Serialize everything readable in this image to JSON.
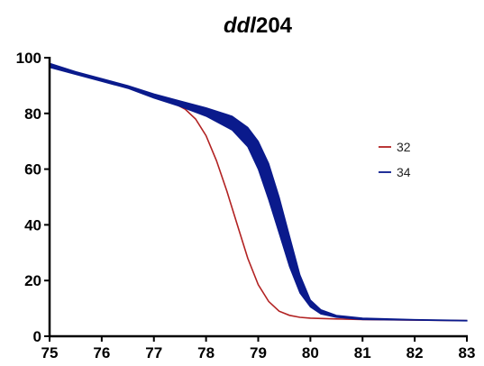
{
  "chart_data": {
    "type": "line",
    "title": {
      "italic": "ddl",
      "rest": "204"
    },
    "xlabel": "",
    "ylabel": "",
    "xlim": [
      75,
      83
    ],
    "ylim": [
      0,
      100
    ],
    "x_ticks": [
      "75",
      "76",
      "77",
      "78",
      "79",
      "80",
      "81",
      "82",
      "83"
    ],
    "y_ticks": [
      "0",
      "20",
      "40",
      "60",
      "80",
      "100"
    ],
    "grid": false,
    "legend_position": "right",
    "series": [
      {
        "name": "32",
        "color": "#b22222",
        "points": [
          [
            75,
            97.5
          ],
          [
            75.5,
            94.5
          ],
          [
            76,
            92.0
          ],
          [
            76.5,
            89.5
          ],
          [
            77,
            86.5
          ],
          [
            77.3,
            84.5
          ],
          [
            77.6,
            81.5
          ],
          [
            77.8,
            78.0
          ],
          [
            78.0,
            72.0
          ],
          [
            78.2,
            63.0
          ],
          [
            78.4,
            52.0
          ],
          [
            78.6,
            40.0
          ],
          [
            78.8,
            28.0
          ],
          [
            79.0,
            18.5
          ],
          [
            79.2,
            12.5
          ],
          [
            79.4,
            9.0
          ],
          [
            79.6,
            7.5
          ],
          [
            79.8,
            6.8
          ],
          [
            80.0,
            6.5
          ],
          [
            80.5,
            6.2
          ],
          [
            81.0,
            6.0
          ],
          [
            82.0,
            5.8
          ],
          [
            83.0,
            5.6
          ]
        ]
      },
      {
        "name": "34",
        "color": "#0a1a8c",
        "upper": [
          [
            75,
            98.0
          ],
          [
            75.5,
            95.0
          ],
          [
            76,
            92.5
          ],
          [
            76.5,
            90.0
          ],
          [
            77,
            87.0
          ],
          [
            77.5,
            84.5
          ],
          [
            78.0,
            82.0
          ],
          [
            78.5,
            79.0
          ],
          [
            78.8,
            75.0
          ],
          [
            79.0,
            70.0
          ],
          [
            79.2,
            62.0
          ],
          [
            79.4,
            50.0
          ],
          [
            79.6,
            36.0
          ],
          [
            79.8,
            22.0
          ],
          [
            80.0,
            13.0
          ],
          [
            80.2,
            9.5
          ],
          [
            80.5,
            7.5
          ],
          [
            81.0,
            6.5
          ],
          [
            82.0,
            6.0
          ],
          [
            83.0,
            5.7
          ]
        ],
        "lower": [
          [
            75,
            96.5
          ],
          [
            75.5,
            94.0
          ],
          [
            76,
            91.5
          ],
          [
            76.5,
            89.0
          ],
          [
            77,
            85.5
          ],
          [
            77.5,
            82.5
          ],
          [
            78.0,
            79.0
          ],
          [
            78.5,
            74.0
          ],
          [
            78.8,
            68.0
          ],
          [
            79.0,
            60.0
          ],
          [
            79.2,
            49.0
          ],
          [
            79.4,
            37.0
          ],
          [
            79.6,
            25.0
          ],
          [
            79.8,
            15.5
          ],
          [
            80.0,
            10.5
          ],
          [
            80.2,
            8.0
          ],
          [
            80.5,
            6.8
          ],
          [
            81.0,
            6.0
          ],
          [
            82.0,
            5.8
          ],
          [
            83.0,
            5.5
          ]
        ]
      }
    ]
  }
}
